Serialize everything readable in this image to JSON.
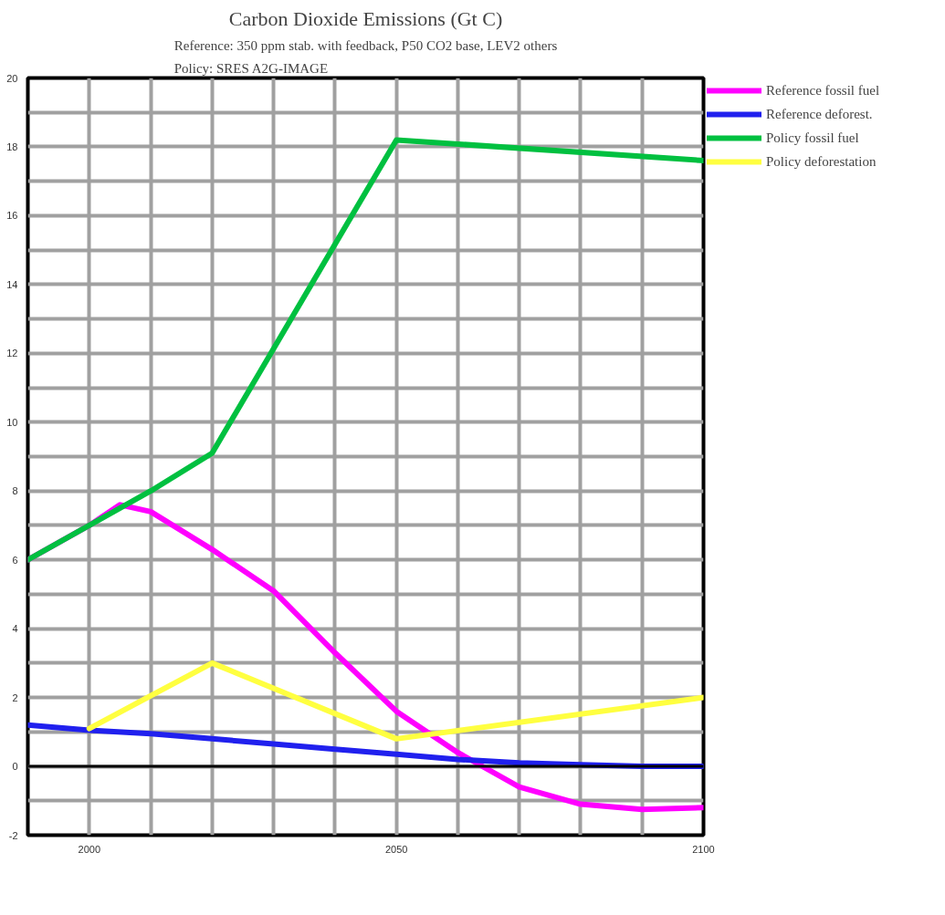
{
  "chart_data": {
    "type": "line",
    "title": "Carbon Dioxide Emissions (Gt C)",
    "subtitle": "Reference: 350 ppm stab. with feedback, P50 CO2 base, LEV2 others\nPolicy: SRES A2G-IMAGE",
    "xlim": [
      1990,
      2100
    ],
    "ylim": [
      -2,
      20
    ],
    "xticks": [
      {
        "value": 1990,
        "label": null
      },
      2000,
      {
        "value": 2010,
        "label": null
      },
      {
        "value": 2020,
        "label": null
      },
      {
        "value": 2030,
        "label": null
      },
      {
        "value": 2040,
        "label": null
      },
      2050,
      {
        "value": 2060,
        "label": null
      },
      {
        "value": 2070,
        "label": null
      },
      {
        "value": 2080,
        "label": null
      },
      {
        "value": 2090,
        "label": null
      },
      2100
    ],
    "yticks": [
      -2,
      {
        "value": -1,
        "label": null
      },
      0,
      {
        "value": 1,
        "label": null
      },
      2,
      {
        "value": 3,
        "label": null
      },
      4,
      {
        "value": 5,
        "label": null
      },
      6,
      {
        "value": 7,
        "label": null
      },
      8,
      {
        "value": 9,
        "label": null
      },
      10,
      {
        "value": 11,
        "label": null
      },
      12,
      {
        "value": 13,
        "label": null
      },
      14,
      {
        "value": 15,
        "label": null
      },
      16,
      {
        "value": 17,
        "label": null
      },
      18,
      {
        "value": 19,
        "label": null
      },
      20
    ],
    "grid": true,
    "legend": "top right",
    "line_style": "solid",
    "marker": "none",
    "ref_lines": [
      {
        "axis": "y",
        "value": 0,
        "label": null,
        "color": "#000000"
      }
    ],
    "series": [
      {
        "name": "Reference fossil fuel",
        "color": "#ff00ff",
        "x": [
          1990,
          2000,
          2005,
          2010,
          2020,
          2030,
          2040,
          2050,
          2060,
          2070,
          2080,
          2090,
          2100
        ],
        "values": [
          6.0,
          7.0,
          7.6,
          7.4,
          6.3,
          5.1,
          3.3,
          1.6,
          0.4,
          -0.6,
          -1.1,
          -1.25,
          -1.2
        ]
      },
      {
        "name": "Reference deforest.",
        "color": "#2020ee",
        "x": [
          1990,
          2000,
          2010,
          2020,
          2030,
          2040,
          2050,
          2060,
          2070,
          2080,
          2090,
          2100
        ],
        "values": [
          1.2,
          1.05,
          0.95,
          0.8,
          0.65,
          0.5,
          0.35,
          0.2,
          0.1,
          0.05,
          0,
          0
        ]
      },
      {
        "name": "Policy fossil fuel",
        "color": "#00c040",
        "x": [
          1990,
          2000,
          2010,
          2020,
          2050,
          2100
        ],
        "values": [
          6.0,
          7.0,
          8.0,
          9.1,
          18.2,
          17.6
        ]
      },
      {
        "name": "Policy deforestation",
        "color": "#ffff40",
        "x": [
          2000,
          2020,
          2050,
          2100
        ],
        "values": [
          1.1,
          3.0,
          0.8,
          2.0
        ]
      }
    ]
  }
}
